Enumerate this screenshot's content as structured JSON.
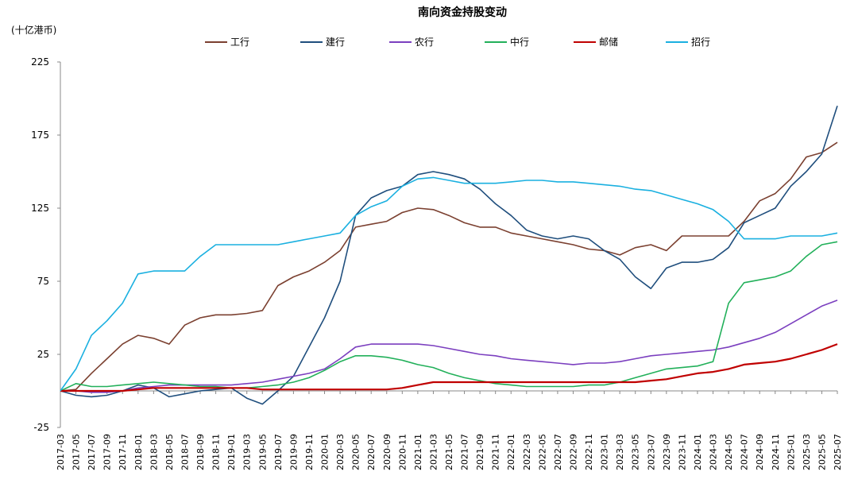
{
  "chart_data": {
    "type": "line",
    "title": "南向资金持股变动",
    "unit": "(十亿港币)",
    "ylim": [
      -25,
      225
    ],
    "yticks": [
      -25,
      25,
      75,
      125,
      175,
      225
    ],
    "x_labels": [
      "2017-03",
      "2017-05",
      "2017-07",
      "2017-09",
      "2017-11",
      "2018-01",
      "2018-03",
      "2018-05",
      "2018-07",
      "2018-09",
      "2018-11",
      "2019-01",
      "2019-03",
      "2019-05",
      "2019-07",
      "2019-09",
      "2019-11",
      "2020-01",
      "2020-03",
      "2020-05",
      "2020-07",
      "2020-09",
      "2020-11",
      "2021-01",
      "2021-03",
      "2021-05",
      "2021-07",
      "2021-09",
      "2021-11",
      "2022-01",
      "2022-03",
      "2022-05",
      "2022-07",
      "2022-09",
      "2022-11",
      "2023-01",
      "2023-03",
      "2023-05",
      "2023-07",
      "2023-09",
      "2023-11",
      "2024-01",
      "2024-03",
      "2024-05",
      "2024-07",
      "2024-09",
      "2024-11",
      "2025-01",
      "2025-03",
      "2025-05",
      "2025-07"
    ],
    "legend_position": "top",
    "series": [
      {
        "name": "工行",
        "color": "#7b4030",
        "values": [
          0,
          1,
          12,
          22,
          32,
          38,
          36,
          32,
          45,
          50,
          52,
          52,
          53,
          55,
          72,
          78,
          82,
          88,
          96,
          112,
          114,
          116,
          122,
          125,
          124,
          120,
          115,
          112,
          112,
          108,
          106,
          104,
          102,
          100,
          97,
          96,
          93,
          98,
          100,
          96,
          106,
          106,
          106,
          106,
          116,
          130,
          135,
          145,
          160,
          163,
          170
        ]
      },
      {
        "name": "建行",
        "color": "#1f4e7d",
        "values": [
          0,
          -3,
          -4,
          -3,
          0,
          4,
          2,
          -4,
          -2,
          0,
          1,
          2,
          -5,
          -9,
          0,
          10,
          30,
          50,
          75,
          120,
          132,
          137,
          140,
          148,
          150,
          148,
          145,
          138,
          128,
          120,
          110,
          106,
          104,
          106,
          104,
          96,
          90,
          78,
          70,
          84,
          88,
          88,
          90,
          98,
          115,
          120,
          125,
          140,
          150,
          162,
          195
        ]
      },
      {
        "name": "农行",
        "color": "#7b3fbf",
        "values": [
          0,
          0,
          -1,
          -1,
          0,
          2,
          3,
          4,
          4,
          4,
          4,
          4,
          5,
          6,
          8,
          10,
          12,
          15,
          22,
          30,
          32,
          32,
          32,
          32,
          31,
          29,
          27,
          25,
          24,
          22,
          21,
          20,
          19,
          18,
          19,
          19,
          20,
          22,
          24,
          25,
          26,
          27,
          28,
          30,
          33,
          36,
          40,
          46,
          52,
          58,
          62
        ]
      },
      {
        "name": "中行",
        "color": "#22b05a",
        "values": [
          0,
          5,
          3,
          3,
          4,
          5,
          6,
          5,
          4,
          3,
          3,
          2,
          2,
          3,
          4,
          6,
          9,
          14,
          20,
          24,
          24,
          23,
          21,
          18,
          16,
          12,
          9,
          7,
          5,
          4,
          3,
          3,
          3,
          3,
          4,
          4,
          6,
          9,
          12,
          15,
          16,
          17,
          20,
          60,
          74,
          76,
          78,
          82,
          92,
          100,
          102
        ]
      },
      {
        "name": "邮储",
        "color": "#c00000",
        "values": [
          0,
          0,
          0,
          0,
          0,
          1,
          2,
          2,
          2,
          2,
          2,
          2,
          2,
          1,
          1,
          1,
          1,
          1,
          1,
          1,
          1,
          1,
          2,
          4,
          6,
          6,
          6,
          6,
          6,
          6,
          6,
          6,
          6,
          6,
          6,
          6,
          6,
          6,
          7,
          8,
          10,
          12,
          13,
          15,
          18,
          19,
          20,
          22,
          25,
          28,
          32
        ]
      },
      {
        "name": "招行",
        "color": "#1ab0e0",
        "values": [
          0,
          15,
          38,
          48,
          60,
          80,
          82,
          82,
          82,
          92,
          100,
          100,
          100,
          100,
          100,
          102,
          104,
          106,
          108,
          120,
          126,
          130,
          140,
          145,
          146,
          144,
          142,
          142,
          142,
          143,
          144,
          144,
          143,
          143,
          142,
          141,
          140,
          138,
          137,
          134,
          131,
          128,
          124,
          116,
          104,
          104,
          104,
          106,
          106,
          106,
          108
        ]
      }
    ]
  }
}
